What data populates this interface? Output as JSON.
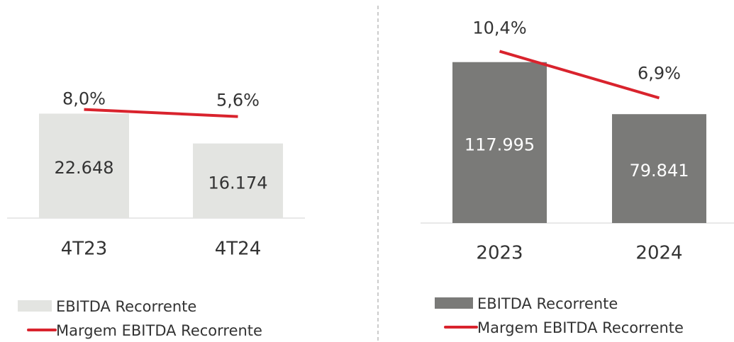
{
  "chart_data": [
    {
      "type": "bar",
      "categories": [
        "4T23",
        "4T24"
      ],
      "series": [
        {
          "name": "EBITDA Recorrente",
          "type": "bar",
          "color": "#e3e4e1",
          "values": [
            22648,
            16174
          ],
          "value_labels": [
            "22.648",
            "16.174"
          ]
        },
        {
          "name": "Margem EBITDA Recorrente",
          "type": "line",
          "axis": "y2",
          "color": "#d9232d",
          "values": [
            8.0,
            5.6
          ],
          "value_labels": [
            "8,0%",
            "5,6%"
          ]
        }
      ],
      "ylim": [
        0,
        35000
      ],
      "y2lim": [
        -29,
        26
      ]
    },
    {
      "type": "bar",
      "categories": [
        "2023",
        "2024"
      ],
      "series": [
        {
          "name": "EBITDA Recorrente",
          "type": "bar",
          "color": "#7a7a78",
          "values": [
            117995,
            79841
          ],
          "value_labels": [
            "117.995",
            "79.841"
          ]
        },
        {
          "name": "Margem EBITDA Recorrente",
          "type": "line",
          "axis": "y2",
          "color": "#d9232d",
          "values": [
            10.4,
            6.9
          ],
          "value_labels": [
            "10,4%",
            "6,9%"
          ]
        }
      ],
      "ylim": [
        0,
        122000
      ],
      "y2lim": [
        -2.5,
        10
      ]
    }
  ]
}
